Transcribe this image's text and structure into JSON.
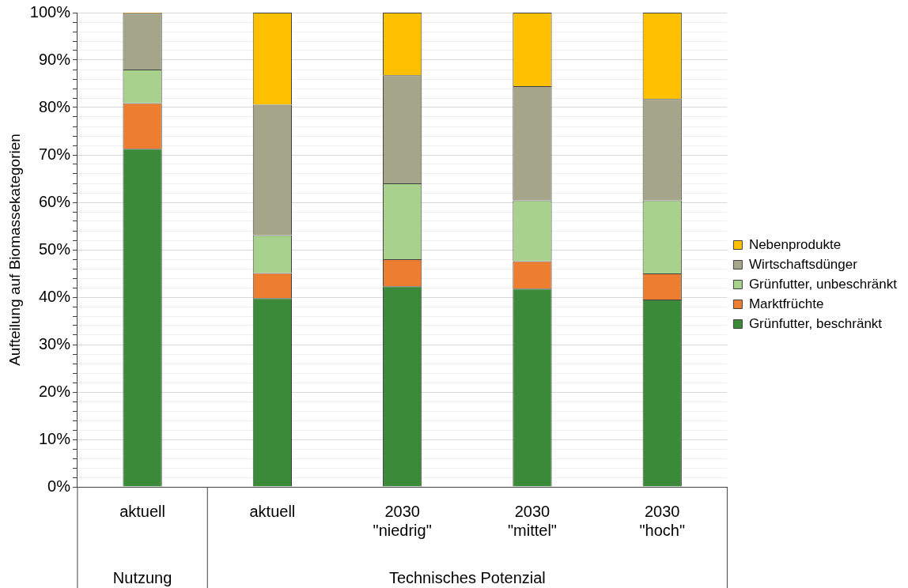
{
  "chart_data": {
    "type": "bar",
    "stacked": true,
    "ylabel": "Aufteilung auf Biomassekategorien",
    "categories": [
      "aktuell",
      "aktuell",
      "2030\n\"niedrig\"",
      "2030\n\"mittel\"",
      "2030\n\"hoch\""
    ],
    "series": [
      {
        "name": "Grünfutter, beschränkt",
        "color": "#3a8a3a",
        "values": [
          71.3,
          39.8,
          42.3,
          41.8,
          39.5
        ]
      },
      {
        "name": "Marktfrüchte",
        "color": "#ed7d31",
        "values": [
          9.6,
          5.3,
          5.7,
          5.8,
          5.5
        ]
      },
      {
        "name": "Grünfutter, unbeschränkt",
        "color": "#a9d18e",
        "values": [
          7.1,
          8.0,
          16.0,
          12.8,
          15.4
        ]
      },
      {
        "name": "Wirtschaftsdünger",
        "color": "#a5a58a",
        "values": [
          11.8,
          27.5,
          22.8,
          24.1,
          21.4
        ]
      },
      {
        "name": "Nebenprodukte",
        "color": "#ffc000",
        "values": [
          0.2,
          19.4,
          13.2,
          15.5,
          18.2
        ]
      }
    ],
    "ylim": [
      0,
      100
    ],
    "yticks": [
      {
        "value": 0,
        "label": "0%"
      },
      {
        "value": 2,
        "label": null
      },
      {
        "value": 4,
        "label": null
      },
      {
        "value": 6,
        "label": null
      },
      {
        "value": 8,
        "label": null
      },
      {
        "value": 10,
        "label": "10%"
      },
      {
        "value": 12,
        "label": null
      },
      {
        "value": 14,
        "label": null
      },
      {
        "value": 16,
        "label": null
      },
      {
        "value": 18,
        "label": null
      },
      {
        "value": 20,
        "label": "20%"
      },
      {
        "value": 22,
        "label": null
      },
      {
        "value": 24,
        "label": null
      },
      {
        "value": 26,
        "label": null
      },
      {
        "value": 28,
        "label": null
      },
      {
        "value": 30,
        "label": "30%"
      },
      {
        "value": 32,
        "label": null
      },
      {
        "value": 34,
        "label": null
      },
      {
        "value": 36,
        "label": null
      },
      {
        "value": 38,
        "label": null
      },
      {
        "value": 40,
        "label": "40%"
      },
      {
        "value": 42,
        "label": null
      },
      {
        "value": 44,
        "label": null
      },
      {
        "value": 46,
        "label": null
      },
      {
        "value": 48,
        "label": null
      },
      {
        "value": 50,
        "label": "50%"
      },
      {
        "value": 52,
        "label": null
      },
      {
        "value": 54,
        "label": null
      },
      {
        "value": 56,
        "label": null
      },
      {
        "value": 58,
        "label": null
      },
      {
        "value": 60,
        "label": "60%"
      },
      {
        "value": 62,
        "label": null
      },
      {
        "value": 64,
        "label": null
      },
      {
        "value": 66,
        "label": null
      },
      {
        "value": 68,
        "label": null
      },
      {
        "value": 70,
        "label": "70%"
      },
      {
        "value": 72,
        "label": null
      },
      {
        "value": 74,
        "label": null
      },
      {
        "value": 76,
        "label": null
      },
      {
        "value": 78,
        "label": null
      },
      {
        "value": 80,
        "label": "80%"
      },
      {
        "value": 82,
        "label": null
      },
      {
        "value": 84,
        "label": null
      },
      {
        "value": 86,
        "label": null
      },
      {
        "value": 88,
        "label": null
      },
      {
        "value": 90,
        "label": "90%"
      },
      {
        "value": 92,
        "label": null
      },
      {
        "value": 94,
        "label": null
      },
      {
        "value": 96,
        "label": null
      },
      {
        "value": 98,
        "label": null
      },
      {
        "value": 100,
        "label": "100%"
      }
    ],
    "grid": "y",
    "legend": "right",
    "annotations": [
      "Nutzung",
      "Technisches Potenzial"
    ]
  }
}
